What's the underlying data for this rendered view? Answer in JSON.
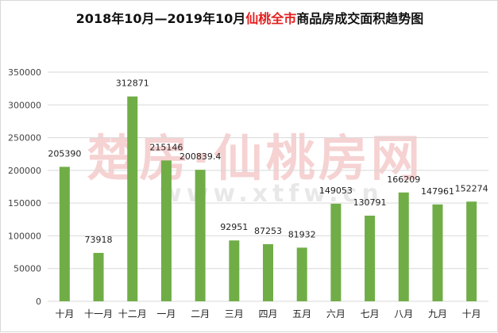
{
  "title": {
    "part1": "2018年10月—2019年10月",
    "highlight": "仙桃全市",
    "part2": "商品房成交面积趋势图"
  },
  "watermark": {
    "cn": "楚房·仙桃房网",
    "url": "www.xtfw.cn"
  },
  "colors": {
    "bar": "#70ad47",
    "title_highlight": "#e41e1e",
    "grid": "#d9d9d9"
  },
  "chart_data": {
    "type": "bar",
    "title": "2018年10月—2019年10月仙桃全市商品房成交面积趋势图",
    "categories": [
      "十月",
      "十一月",
      "十二月",
      "一月",
      "二月",
      "三月",
      "四月",
      "五月",
      "六月",
      "七月",
      "八月",
      "九月",
      "十月"
    ],
    "values": [
      205390,
      73918,
      312871,
      215146,
      200839.4,
      92951,
      87253,
      81932,
      149053,
      130791,
      166209,
      147961,
      152274
    ],
    "value_labels": [
      "205390",
      "73918",
      "312871",
      "215146",
      "200839.4",
      "92951",
      "87253",
      "81932",
      "149053",
      "130791",
      "166209",
      "147961",
      "152274"
    ],
    "yticks": [
      "0",
      "50000",
      "100000",
      "150000",
      "200000",
      "250000",
      "300000",
      "350000"
    ],
    "ylim": [
      0,
      350000
    ],
    "xlabel": "",
    "ylabel": "",
    "grid": true,
    "legend": "none"
  }
}
